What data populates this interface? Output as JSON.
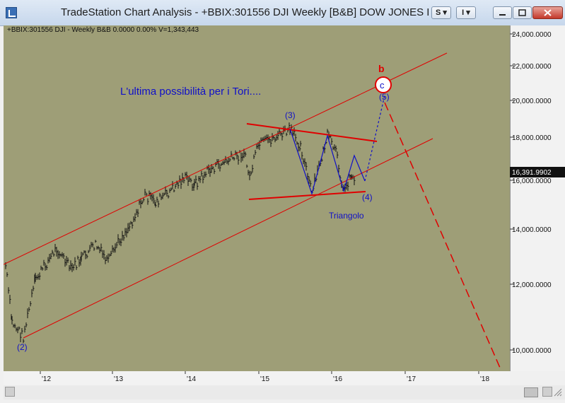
{
  "window": {
    "title": "TradeStation Chart Analysis - +BBIX:301556 DJI Weekly [B&B] DOW JONES IND",
    "s_button": "S",
    "i_button": "I"
  },
  "chart": {
    "info_line": "+BBIX:301556 DJI - Weekly  B&B  0.0000  0.00%  V=1,343,443",
    "current_price": "16,391.9902",
    "y_ticks": [
      "24,000.0000",
      "22,000.0000",
      "20,000.0000",
      "18,000.0000",
      "16,000.0000",
      "14,000.0000",
      "12,000.0000",
      "10,000.0000"
    ],
    "x_ticks": [
      "'12",
      "'13",
      "'14",
      "'15",
      "'16",
      "'17",
      "'18"
    ],
    "annotations": {
      "title_note": "L'ultima possibilità per i Tori....",
      "wave2": "(2)",
      "wave3": "(3)",
      "wave4": "(4)",
      "wave5": "(5)",
      "wave_b": "b",
      "wave_c": "c",
      "triangle": "Triangolo"
    },
    "colors": {
      "background": "#9e9e77",
      "bars": "#111111",
      "channel": "#e00000",
      "labels": "#1010c8"
    }
  }
}
